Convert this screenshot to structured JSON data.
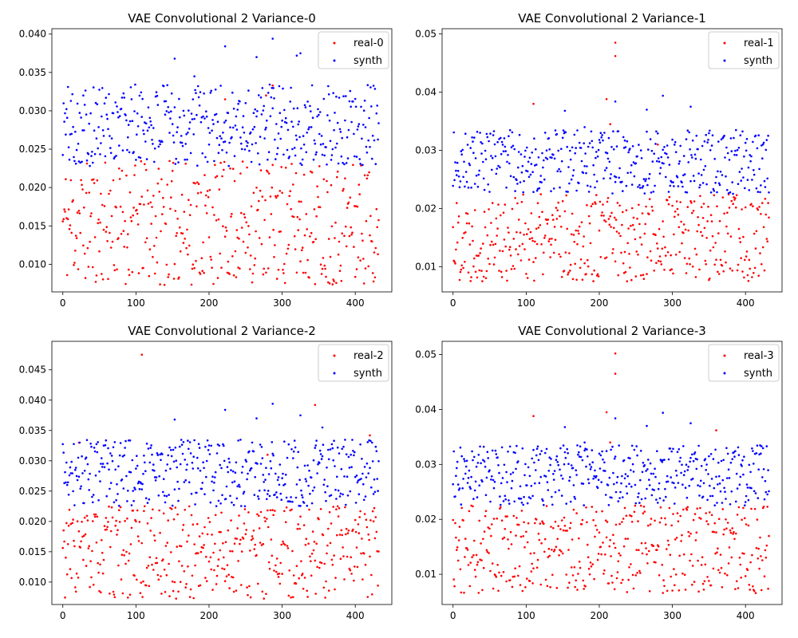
{
  "chart_data": [
    {
      "type": "scatter",
      "title": "VAE Convolutional 2 Variance-0",
      "xlabel": "",
      "ylabel": "",
      "xlim": [
        -15,
        450
      ],
      "ylim": [
        0.0064,
        0.0407
      ],
      "xticks": [
        0,
        100,
        200,
        300,
        400
      ],
      "yticks": [
        0.01,
        0.015,
        0.02,
        0.025,
        0.03,
        0.035,
        0.04
      ],
      "ytick_labels": [
        "0.010",
        "0.015",
        "0.020",
        "0.025",
        "0.030",
        "0.035",
        "0.040"
      ],
      "legend_position": "top-right",
      "n_points": 433,
      "real_params": {
        "low": 0.0073,
        "high": 0.0235,
        "outliers": [
          [
            222,
            0.0315
          ],
          [
            278,
            0.032
          ],
          [
            287,
            0.0333
          ]
        ],
        "seed": 11
      },
      "synth_params": {
        "low": 0.0228,
        "high": 0.0335,
        "outliers": [
          [
            153,
            0.0368
          ],
          [
            222,
            0.0384
          ],
          [
            265,
            0.037
          ],
          [
            287,
            0.0394
          ],
          [
            320,
            0.0372
          ],
          [
            325,
            0.0375
          ],
          [
            180,
            0.0345
          ]
        ],
        "seed": 101
      },
      "series": [
        {
          "name": "real-0",
          "color": "#ff0000"
        },
        {
          "name": "synth",
          "color": "#0000ff"
        }
      ]
    },
    {
      "type": "scatter",
      "title": "VAE Convolutional 2 Variance-1",
      "xlabel": "",
      "ylabel": "",
      "xlim": [
        -15,
        450
      ],
      "ylim": [
        0.0057,
        0.0509
      ],
      "xticks": [
        0,
        100,
        200,
        300,
        400
      ],
      "yticks": [
        0.01,
        0.02,
        0.03,
        0.04,
        0.05
      ],
      "ytick_labels": [
        "0.01",
        "0.02",
        "0.03",
        "0.04",
        "0.05"
      ],
      "legend_position": "top-right",
      "n_points": 433,
      "real_params": {
        "low": 0.0075,
        "high": 0.0225,
        "outliers": [
          [
            222,
            0.0485
          ],
          [
            222,
            0.0462
          ],
          [
            110,
            0.038
          ],
          [
            210,
            0.0388
          ],
          [
            215,
            0.0345
          ],
          [
            280,
            0.031
          ]
        ],
        "seed": 22
      },
      "synth_params": {
        "low": 0.0225,
        "high": 0.0335,
        "outliers": [
          [
            153,
            0.0368
          ],
          [
            222,
            0.0384
          ],
          [
            287,
            0.0394
          ],
          [
            325,
            0.0375
          ],
          [
            265,
            0.037
          ],
          [
            180,
            0.034
          ]
        ],
        "seed": 202
      },
      "series": [
        {
          "name": "real-1",
          "color": "#ff0000"
        },
        {
          "name": "synth",
          "color": "#0000ff"
        }
      ]
    },
    {
      "type": "scatter",
      "title": "VAE Convolutional 2 Variance-2",
      "xlabel": "",
      "ylabel": "",
      "xlim": [
        -15,
        450
      ],
      "ylim": [
        0.0063,
        0.0497
      ],
      "xticks": [
        0,
        100,
        200,
        300,
        400
      ],
      "yticks": [
        0.01,
        0.015,
        0.02,
        0.025,
        0.03,
        0.035,
        0.04,
        0.045
      ],
      "ytick_labels": [
        "0.010",
        "0.015",
        "0.020",
        "0.025",
        "0.030",
        "0.035",
        "0.040",
        "0.045"
      ],
      "legend_position": "top-right",
      "n_points": 433,
      "real_params": {
        "low": 0.0072,
        "high": 0.0225,
        "outliers": [
          [
            108,
            0.0475
          ],
          [
            345,
            0.0392
          ],
          [
            22,
            0.033
          ],
          [
            420,
            0.0342
          ],
          [
            280,
            0.031
          ]
        ],
        "seed": 33
      },
      "synth_params": {
        "low": 0.0225,
        "high": 0.0335,
        "outliers": [
          [
            153,
            0.0368
          ],
          [
            222,
            0.0384
          ],
          [
            287,
            0.0394
          ],
          [
            325,
            0.0375
          ],
          [
            265,
            0.037
          ],
          [
            355,
            0.0355
          ]
        ],
        "seed": 303
      },
      "series": [
        {
          "name": "real-2",
          "color": "#ff0000"
        },
        {
          "name": "synth",
          "color": "#0000ff"
        }
      ]
    },
    {
      "type": "scatter",
      "title": "VAE Convolutional 2 Variance-3",
      "xlabel": "",
      "ylabel": "",
      "xlim": [
        -15,
        450
      ],
      "ylim": [
        0.0045,
        0.0524
      ],
      "xticks": [
        0,
        100,
        200,
        300,
        400
      ],
      "yticks": [
        0.01,
        0.02,
        0.03,
        0.04,
        0.05
      ],
      "ytick_labels": [
        "0.01",
        "0.02",
        "0.03",
        "0.04",
        "0.05"
      ],
      "legend_position": "top-right",
      "n_points": 433,
      "real_params": {
        "low": 0.0065,
        "high": 0.0225,
        "outliers": [
          [
            222,
            0.0502
          ],
          [
            222,
            0.0465
          ],
          [
            110,
            0.0388
          ],
          [
            210,
            0.0395
          ],
          [
            360,
            0.0362
          ],
          [
            215,
            0.034
          ]
        ],
        "seed": 44
      },
      "synth_params": {
        "low": 0.0225,
        "high": 0.0335,
        "outliers": [
          [
            153,
            0.0368
          ],
          [
            222,
            0.0384
          ],
          [
            287,
            0.0394
          ],
          [
            325,
            0.0375
          ],
          [
            265,
            0.037
          ],
          [
            180,
            0.034
          ]
        ],
        "seed": 404
      },
      "series": [
        {
          "name": "real-3",
          "color": "#ff0000"
        },
        {
          "name": "synth",
          "color": "#0000ff"
        }
      ]
    }
  ]
}
